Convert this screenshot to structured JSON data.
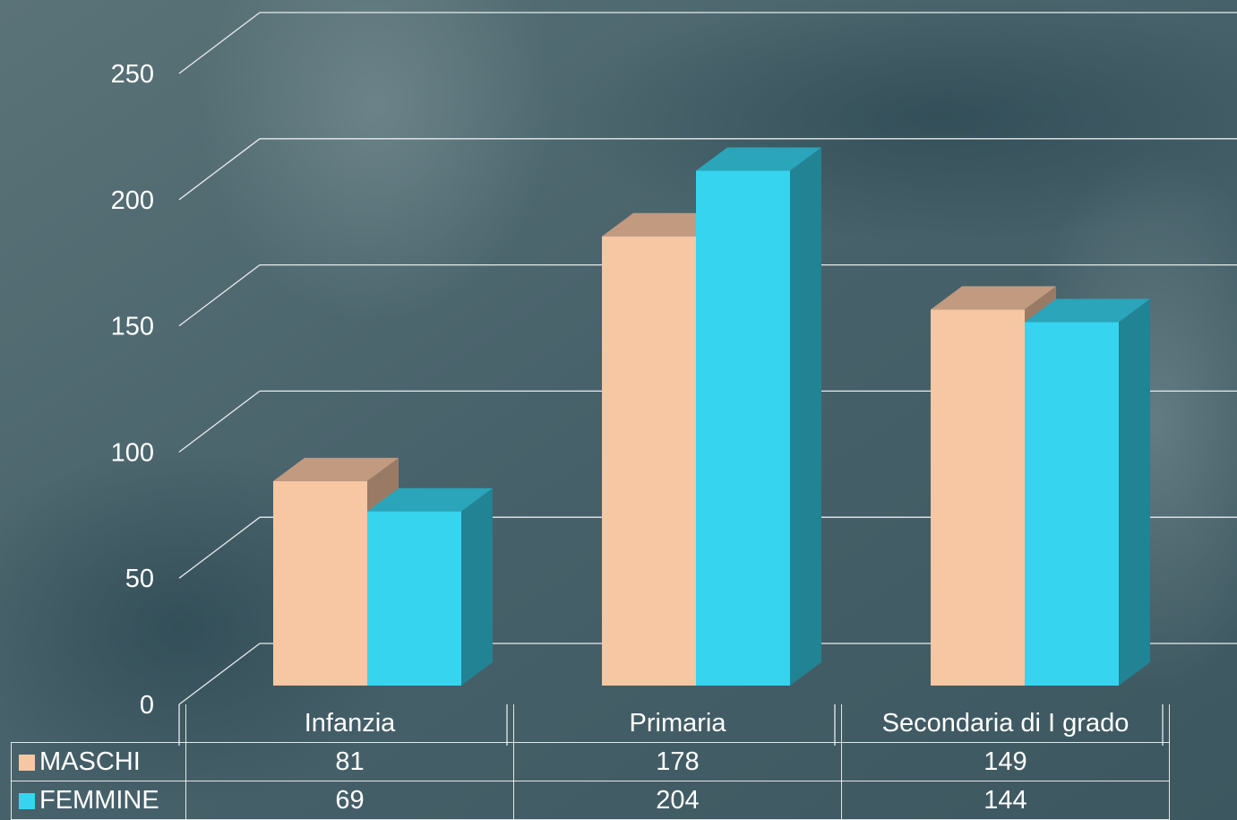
{
  "chart_data": {
    "type": "bar",
    "title": "",
    "xlabel": "",
    "ylabel": "",
    "ylim": [
      0,
      250
    ],
    "yticks": [
      0,
      50,
      100,
      150,
      200,
      250
    ],
    "grid": true,
    "style": "3d-clustered-column",
    "categories": [
      "Infanzia",
      "Primaria",
      "Secondaria di I grado"
    ],
    "series": [
      {
        "name": "MASCHI",
        "values": [
          81,
          178,
          149
        ],
        "color": "#f7c6a3"
      },
      {
        "name": "FEMMINE",
        "values": [
          69,
          204,
          144
        ],
        "color": "#36d4ef"
      }
    ],
    "legend": "data table below chart"
  },
  "colors": {
    "background": "#4a6469",
    "gridline": "#e6ecee",
    "text": "#ffffff"
  }
}
